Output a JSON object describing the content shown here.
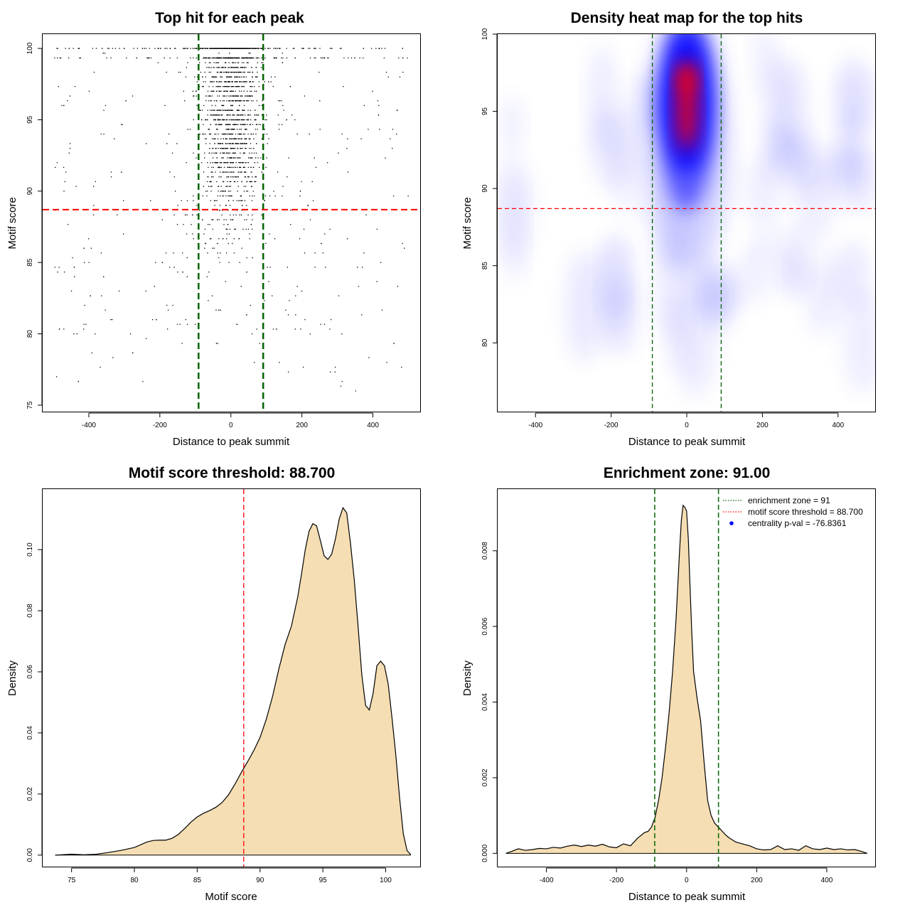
{
  "chart_data": [
    {
      "id": "scatter",
      "type": "scatter",
      "title": "Top hit for each peak",
      "xlabel": "Distance to peak summit",
      "ylabel": "Motif score",
      "xlim": [
        -530,
        535
      ],
      "ylim": [
        74.5,
        101
      ],
      "xticks": [
        -400,
        -200,
        0,
        200,
        400
      ],
      "yticks": [
        75,
        80,
        85,
        90,
        95,
        100
      ],
      "point_color": "#000000",
      "enrichment_zone": [
        -91,
        91
      ],
      "zone_color": "#006400",
      "threshold": 88.7,
      "threshold_color": "#ff0000",
      "distribution": {
        "n_points": 2400,
        "x_range": [
          -500,
          500
        ],
        "y_range": [
          75.6,
          100
        ]
      }
    },
    {
      "id": "heatmap",
      "type": "heatmap",
      "title": "Density heat map for the top hits",
      "xlabel": "Distance to peak summit",
      "ylabel": "Motif score",
      "xlim": [
        -500,
        500
      ],
      "ylim": [
        75.5,
        100
      ],
      "xticks": [
        -400,
        -200,
        0,
        200,
        400
      ],
      "yticks": [
        80,
        85,
        90,
        95,
        100
      ],
      "colors": {
        "low": "#ffffff",
        "mid": "#0000ff",
        "high": "#ff0000"
      },
      "enrichment_zone": [
        -91,
        91
      ],
      "zone_color": "#006400",
      "threshold": 88.7,
      "threshold_color": "#ff0000",
      "hotspot": {
        "x": 0,
        "y_range": [
          91,
          99
        ]
      }
    },
    {
      "id": "score-density",
      "type": "area",
      "title": "Motif score threshold: 88.700",
      "xlabel": "Motif score",
      "ylabel": "Density",
      "xlim": [
        72.7,
        102.8
      ],
      "ylim": [
        -0.004,
        0.1198
      ],
      "xticks": [
        75,
        80,
        85,
        90,
        95,
        100
      ],
      "yticks": [
        0.0,
        0.02,
        0.04,
        0.06,
        0.08,
        0.1
      ],
      "ytick_labels": [
        "0.00",
        "0.02",
        "0.04",
        "0.06",
        "0.08",
        "0.10"
      ],
      "fill_color": "#f5deb3",
      "threshold": 88.7,
      "threshold_color": "#ff0000",
      "x": [
        73.7,
        75,
        76,
        77,
        78,
        79,
        80,
        81,
        81.5,
        82,
        82.5,
        83,
        83.5,
        84,
        84.5,
        85,
        85.5,
        86,
        86.5,
        87,
        87.5,
        88,
        88.5,
        89,
        89.5,
        90,
        90.5,
        91,
        91.5,
        92,
        92.5,
        93,
        93.3,
        93.6,
        93.9,
        94.2,
        94.5,
        94.8,
        95.1,
        95.4,
        95.7,
        96,
        96.3,
        96.6,
        96.9,
        97.2,
        97.5,
        97.8,
        98.1,
        98.4,
        98.7,
        99,
        99.3,
        99.6,
        99.9,
        100.2,
        100.5,
        100.8,
        101.1,
        101.4,
        101.7,
        102
      ],
      "y": [
        0.0,
        0.0003,
        0.0001,
        0.0003,
        0.0009,
        0.0016,
        0.0025,
        0.0043,
        0.0048,
        0.0049,
        0.0049,
        0.0055,
        0.0068,
        0.0087,
        0.0108,
        0.0125,
        0.0137,
        0.0146,
        0.0157,
        0.0173,
        0.0198,
        0.0232,
        0.027,
        0.0305,
        0.0342,
        0.0385,
        0.0445,
        0.052,
        0.061,
        0.069,
        0.075,
        0.0845,
        0.092,
        0.1,
        0.106,
        0.1085,
        0.1078,
        0.103,
        0.098,
        0.0968,
        0.0985,
        0.1035,
        0.11,
        0.1137,
        0.112,
        0.102,
        0.09,
        0.075,
        0.059,
        0.049,
        0.0475,
        0.053,
        0.062,
        0.0635,
        0.062,
        0.056,
        0.045,
        0.033,
        0.019,
        0.007,
        0.0015,
        0.0001
      ]
    },
    {
      "id": "distance-density",
      "type": "area",
      "title": "Enrichment zone: 91.00",
      "xlabel": "Distance to peak summit",
      "ylabel": "Density",
      "xlim": [
        -539,
        540
      ],
      "ylim": [
        -0.00037,
        0.00963
      ],
      "xticks": [
        -400,
        -200,
        0,
        200,
        400
      ],
      "yticks": [
        0.0,
        0.002,
        0.004,
        0.006,
        0.008
      ],
      "ytick_labels": [
        "0.000",
        "0.002",
        "0.004",
        "0.006",
        "0.008"
      ],
      "fill_color": "#f5deb3",
      "enrichment_zone": [
        -91,
        91
      ],
      "zone_color": "#006400",
      "x": [
        -515,
        -500,
        -480,
        -460,
        -440,
        -420,
        -400,
        -380,
        -360,
        -340,
        -320,
        -300,
        -280,
        -260,
        -240,
        -220,
        -200,
        -180,
        -160,
        -140,
        -120,
        -110,
        -100,
        -90,
        -80,
        -70,
        -60,
        -50,
        -40,
        -30,
        -20,
        -15,
        -10,
        -5,
        0,
        5,
        10,
        15,
        20,
        30,
        40,
        50,
        60,
        70,
        80,
        90,
        100,
        110,
        120,
        140,
        160,
        180,
        200,
        220,
        240,
        260,
        280,
        300,
        320,
        340,
        360,
        380,
        400,
        420,
        440,
        460,
        480,
        500,
        515
      ],
      "y": [
        0.0,
        5e-05,
        0.00012,
        8e-05,
        0.0001,
        0.00013,
        0.00012,
        0.00016,
        0.00014,
        0.00019,
        0.00022,
        0.00018,
        0.00022,
        0.00019,
        0.00024,
        0.00017,
        0.00015,
        0.00025,
        0.0002,
        0.0004,
        0.00055,
        0.00058,
        0.0007,
        0.00095,
        0.0014,
        0.002,
        0.0028,
        0.0037,
        0.0048,
        0.0062,
        0.008,
        0.0088,
        0.0092,
        0.00915,
        0.00905,
        0.0083,
        0.007,
        0.0058,
        0.0048,
        0.0041,
        0.0035,
        0.0024,
        0.0014,
        0.001,
        0.0008,
        0.0007,
        0.0006,
        0.0005,
        0.00042,
        0.0003,
        0.00025,
        0.0002,
        0.00012,
        9e-05,
        0.0001,
        0.0002,
        0.0001,
        0.00012,
        8e-05,
        0.0002,
        0.00012,
        0.0001,
        0.00014,
        0.0001,
        0.00012,
        9e-05,
        0.0001,
        5e-05,
        0.0
      ],
      "legend": [
        {
          "label": "enrichment zone = 91",
          "color": "#006400",
          "kind": "dotted-line"
        },
        {
          "label": "motif score threshold = 88.700",
          "color": "#ff0000",
          "kind": "dotted-line"
        },
        {
          "label": "centrality p-val = -76.8361",
          "color": "#0000ff",
          "kind": "point"
        }
      ],
      "legend_position": "top-right"
    }
  ]
}
